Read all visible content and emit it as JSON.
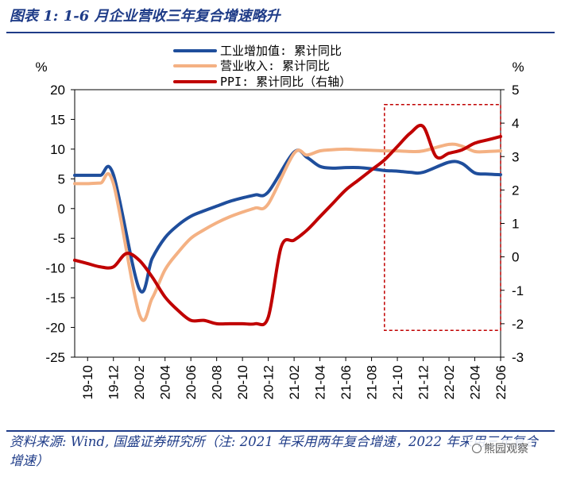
{
  "figure": {
    "title": "图表 1: 1-6 月企业营收三年复合增速略升",
    "source": "资料来源: Wind, 国盛证券研究所（注: 2021 年采用两年复合增速，2022 年采用三年复合增速）",
    "watermark": "熊园观察"
  },
  "colors": {
    "title_blue": "#1f3c88",
    "series_industrial": "#1f4e9c",
    "series_revenue": "#f4b183",
    "series_ppi": "#c00000",
    "highlight_box": "#c00000"
  },
  "chart_data": {
    "type": "line",
    "x_tick_labels": [
      "19-10",
      "19-12",
      "20-02",
      "20-04",
      "20-06",
      "20-08",
      "20-10",
      "20-12",
      "21-02",
      "21-04",
      "21-06",
      "21-08",
      "21-10",
      "21-12",
      "22-02",
      "22-04",
      "22-06"
    ],
    "x_range": [
      "2019-09",
      "2022-06"
    ],
    "y_left": {
      "unit": "%",
      "min": -25,
      "max": 20,
      "ticks": [
        20,
        15,
        10,
        5,
        0,
        -5,
        -10,
        -15,
        -20,
        -25
      ]
    },
    "y_right": {
      "unit": "%",
      "min": -3,
      "max": 5,
      "ticks": [
        5,
        4,
        3,
        2,
        1,
        0,
        -1,
        -2,
        -3
      ]
    },
    "grid": false,
    "legend_position": "top-center",
    "highlight": {
      "x_from": "2021-09",
      "x_to": "2022-06",
      "y_from": -20.5,
      "y_to": 17.5,
      "axis": "left",
      "style": "dashed"
    },
    "series": [
      {
        "name": "工业增加值: 累计同比",
        "axis": "left",
        "points": [
          [
            "2019-09",
            5.6
          ],
          [
            "2019-10",
            5.6
          ],
          [
            "2019-11",
            5.6
          ],
          [
            "2019-12",
            5.7
          ],
          [
            "2020-02",
            -13.5
          ],
          [
            "2020-03",
            -8.4
          ],
          [
            "2020-04",
            -4.9
          ],
          [
            "2020-05",
            -2.8
          ],
          [
            "2020-06",
            -1.3
          ],
          [
            "2020-07",
            -0.4
          ],
          [
            "2020-08",
            0.4
          ],
          [
            "2020-09",
            1.2
          ],
          [
            "2020-10",
            1.8
          ],
          [
            "2020-11",
            2.3
          ],
          [
            "2020-12",
            2.8
          ],
          [
            "2021-02",
            9.5
          ],
          [
            "2021-03",
            8.6
          ],
          [
            "2021-04",
            7.1
          ],
          [
            "2021-05",
            6.8
          ],
          [
            "2021-06",
            6.9
          ],
          [
            "2021-07",
            6.9
          ],
          [
            "2021-08",
            6.7
          ],
          [
            "2021-09",
            6.4
          ],
          [
            "2021-10",
            6.3
          ],
          [
            "2021-11",
            6.1
          ],
          [
            "2021-12",
            6.1
          ],
          [
            "2022-02",
            7.8
          ],
          [
            "2022-03",
            7.6
          ],
          [
            "2022-04",
            6.0
          ],
          [
            "2022-05",
            5.8
          ],
          [
            "2022-06",
            5.7
          ]
        ]
      },
      {
        "name": "营业收入: 累计同比",
        "axis": "left",
        "points": [
          [
            "2019-09",
            4.2
          ],
          [
            "2019-10",
            4.2
          ],
          [
            "2019-11",
            4.3
          ],
          [
            "2019-12",
            4.2
          ],
          [
            "2020-02",
            -17.7
          ],
          [
            "2020-03",
            -15.1
          ],
          [
            "2020-04",
            -10.3
          ],
          [
            "2020-05",
            -7.4
          ],
          [
            "2020-06",
            -5.0
          ],
          [
            "2020-07",
            -3.6
          ],
          [
            "2020-08",
            -2.4
          ],
          [
            "2020-09",
            -1.4
          ],
          [
            "2020-10",
            -0.6
          ],
          [
            "2020-11",
            0.1
          ],
          [
            "2020-12",
            0.8
          ],
          [
            "2021-02",
            9.3
          ],
          [
            "2021-03",
            9.0
          ],
          [
            "2021-04",
            9.7
          ],
          [
            "2021-05",
            9.9
          ],
          [
            "2021-06",
            10.0
          ],
          [
            "2021-07",
            9.9
          ],
          [
            "2021-08",
            9.8
          ],
          [
            "2021-09",
            9.7
          ],
          [
            "2021-10",
            9.7
          ],
          [
            "2021-11",
            9.6
          ],
          [
            "2021-12",
            9.7
          ],
          [
            "2022-02",
            10.8
          ],
          [
            "2022-03",
            10.5
          ],
          [
            "2022-04",
            9.6
          ],
          [
            "2022-05",
            9.6
          ],
          [
            "2022-06",
            9.7
          ]
        ]
      },
      {
        "name": "PPI: 累计同比（右轴）",
        "axis": "right",
        "points": [
          [
            "2019-09",
            -0.1
          ],
          [
            "2019-10",
            -0.2
          ],
          [
            "2019-11",
            -0.3
          ],
          [
            "2019-12",
            -0.3
          ],
          [
            "2020-01",
            0.1
          ],
          [
            "2020-02",
            -0.1
          ],
          [
            "2020-03",
            -0.6
          ],
          [
            "2020-04",
            -1.2
          ],
          [
            "2020-05",
            -1.6
          ],
          [
            "2020-06",
            -1.9
          ],
          [
            "2020-07",
            -1.9
          ],
          [
            "2020-08",
            -2.0
          ],
          [
            "2020-09",
            -2.0
          ],
          [
            "2020-10",
            -2.0
          ],
          [
            "2020-11",
            -2.0
          ],
          [
            "2020-12",
            -1.8
          ],
          [
            "2021-01",
            0.3
          ],
          [
            "2021-02",
            0.5
          ],
          [
            "2021-03",
            0.8
          ],
          [
            "2021-04",
            1.2
          ],
          [
            "2021-05",
            1.6
          ],
          [
            "2021-06",
            2.0
          ],
          [
            "2021-07",
            2.3
          ],
          [
            "2021-08",
            2.6
          ],
          [
            "2021-09",
            2.9
          ],
          [
            "2021-10",
            3.3
          ],
          [
            "2021-11",
            3.7
          ],
          [
            "2021-12",
            3.9
          ],
          [
            "2022-01",
            3.0
          ],
          [
            "2022-02",
            3.1
          ],
          [
            "2022-03",
            3.2
          ],
          [
            "2022-04",
            3.4
          ],
          [
            "2022-05",
            3.5
          ],
          [
            "2022-06",
            3.6
          ]
        ]
      }
    ]
  }
}
